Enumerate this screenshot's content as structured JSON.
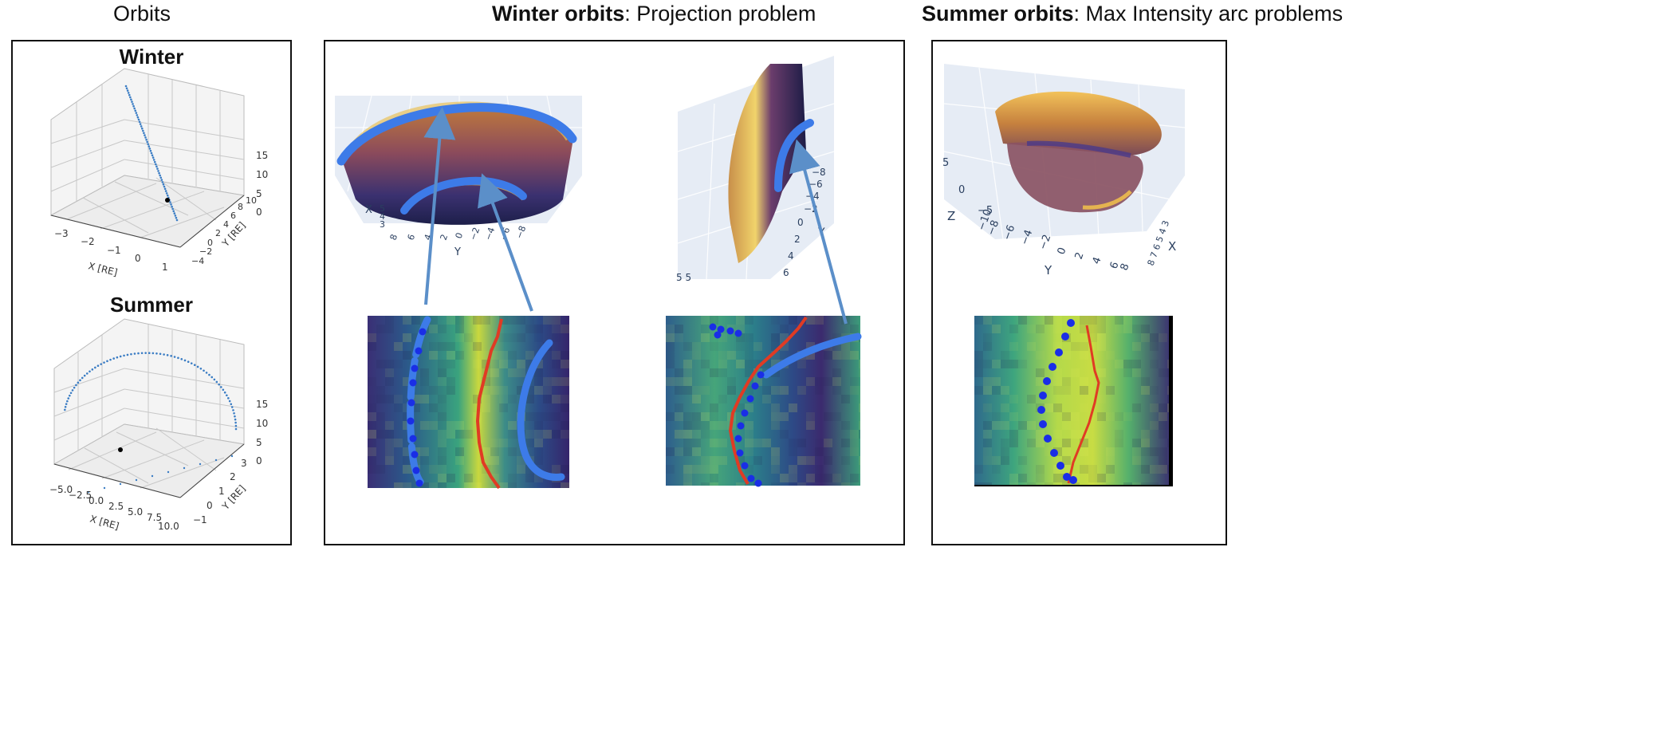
{
  "headers": {
    "orbits": "Orbits",
    "winter_bold": "Winter orbits",
    "winter_rest": ": Projection problem",
    "summer_bold": "Summer orbits",
    "summer_rest": ": Max Intensity arc problems"
  },
  "orbits_panel": {
    "winter": {
      "title": "Winter",
      "xlabel": "X [RE]",
      "ylabel": "Y [RE]",
      "x_ticks": [
        "−3",
        "−2",
        "−1",
        "0",
        "1"
      ],
      "y_ticks": [
        "−4",
        "−2",
        "0",
        "2",
        "4",
        "6",
        "8",
        "10"
      ],
      "z_ticks": [
        "0",
        "5",
        "10",
        "15"
      ]
    },
    "summer": {
      "title": "Summer",
      "xlabel": "X [RE]",
      "ylabel": "Y [RE]",
      "x_ticks": [
        "−5.0",
        "−2.5",
        "0.0",
        "2.5",
        "5.0",
        "7.5",
        "10.0"
      ],
      "y_ticks": [
        "−1",
        "0",
        "1",
        "2",
        "3"
      ],
      "z_ticks": [
        "0",
        "5",
        "10",
        "15"
      ]
    }
  },
  "winter_panel": {
    "left3d": {
      "axis_x_label": "X",
      "axis_y_label": "Y",
      "x_ticks": [
        "5",
        "4",
        "3"
      ],
      "y_ticks": [
        "8",
        "6",
        "4",
        "2",
        "0",
        "−2",
        "−4",
        "−6",
        "−8"
      ]
    },
    "right3d": {
      "axis_y_label": "Y",
      "y_ticks": [
        "−8",
        "−6",
        "−4",
        "−2",
        "0",
        "2",
        "4",
        "6"
      ],
      "corner_ticks": "5 5"
    }
  },
  "summer_panel": {
    "axis_z_label": "Z",
    "axis_y_label": "Y",
    "axis_x_label": "X",
    "z_ticks": [
      "5",
      "0",
      "−5"
    ],
    "y_ticks": [
      "−10",
      "−8",
      "−6",
      "−4",
      "−2",
      "0",
      "2",
      "4",
      "6",
      "8"
    ],
    "x_ticks": "8 7 6 5 4 3"
  },
  "colors": {
    "arc_blue": "#3d7be8",
    "arrow_blue": "#5b8fc9",
    "boundary_red": "#e03b24",
    "dot_blue": "#1a2ee6",
    "orbit_dot": "#3b7dc4",
    "plotly_grid_bg": "#e6ecf5"
  }
}
